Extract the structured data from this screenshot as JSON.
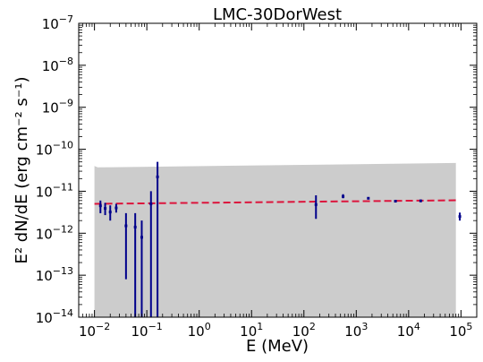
{
  "chart_data": {
    "type": "scatter",
    "title": "LMC-30DorWest",
    "xlabel": "E (MeV)",
    "ylabel": "E² dN/dE (erg cm⁻² s⁻¹)",
    "xscale": "log",
    "yscale": "log",
    "xlim": [
      0.005,
      200000
    ],
    "ylim": [
      1e-14,
      1e-07
    ],
    "x_ticks": [
      {
        "value": 0.01,
        "base": "10",
        "exp": "−2"
      },
      {
        "value": 0.1,
        "base": "10",
        "exp": "−1"
      },
      {
        "value": 1,
        "base": "10",
        "exp": "0"
      },
      {
        "value": 10,
        "base": "10",
        "exp": "1"
      },
      {
        "value": 100,
        "base": "10",
        "exp": "2"
      },
      {
        "value": 1000,
        "base": "10",
        "exp": "3"
      },
      {
        "value": 10000,
        "base": "10",
        "exp": "4"
      },
      {
        "value": 100000,
        "base": "10",
        "exp": "5"
      }
    ],
    "y_ticks": [
      {
        "value": 1e-14,
        "base": "10",
        "exp": "−14"
      },
      {
        "value": 1e-13,
        "base": "10",
        "exp": "−13"
      },
      {
        "value": 1e-12,
        "base": "10",
        "exp": "−12"
      },
      {
        "value": 1e-11,
        "base": "10",
        "exp": "−11"
      },
      {
        "value": 1e-10,
        "base": "10",
        "exp": "−10"
      },
      {
        "value": 1e-09,
        "base": "10",
        "exp": "−9"
      },
      {
        "value": 1e-08,
        "base": "10",
        "exp": "−8"
      },
      {
        "value": 1e-07,
        "base": "10",
        "exp": "−7"
      }
    ],
    "grid": false,
    "band": {
      "color": "#cccccc",
      "x": [
        0.01,
        0.0115,
        80000
      ],
      "upper": [
        4e-11,
        3.7e-11,
        4.7e-11
      ],
      "lower": [
        1e-14,
        1e-14,
        1e-14
      ]
    },
    "model_line": {
      "color": "#dc143c",
      "style": "dashed",
      "x": [
        0.01,
        80000
      ],
      "y": [
        5e-12,
        6.1e-12
      ]
    },
    "points": {
      "color": "#00008b",
      "data": [
        {
          "x": 0.013,
          "y": 4.5e-12,
          "ylo": 3e-12,
          "yhi": 6e-12
        },
        {
          "x": 0.016,
          "y": 3.9e-12,
          "ylo": 2.7e-12,
          "yhi": 5.3e-12
        },
        {
          "x": 0.02,
          "y": 3.2e-12,
          "ylo": 2e-12,
          "yhi": 4.6e-12
        },
        {
          "x": 0.026,
          "y": 4e-12,
          "ylo": 3.1e-12,
          "yhi": 5e-12
        },
        {
          "x": 0.04,
          "y": 1.5e-12,
          "ylo": 8e-14,
          "yhi": 3e-12
        },
        {
          "x": 0.06,
          "y": 1.4e-12,
          "ylo": 1e-14,
          "yhi": 3e-12
        },
        {
          "x": 0.08,
          "y": 8e-13,
          "ylo": 1e-14,
          "yhi": 2e-12
        },
        {
          "x": 0.12,
          "y": 5e-12,
          "ylo": 1e-14,
          "yhi": 1e-11
        },
        {
          "x": 0.16,
          "y": 2.2e-11,
          "ylo": 1e-14,
          "yhi": 5e-11
        },
        {
          "x": 170,
          "y": 4.8e-12,
          "ylo": 2.2e-12,
          "yhi": 8e-12
        },
        {
          "x": 560,
          "y": 7.5e-12,
          "ylo": 6.8e-12,
          "yhi": 8.5e-12
        },
        {
          "x": 1700,
          "y": 6.8e-12,
          "ylo": 6.5e-12,
          "yhi": 7.2e-12
        },
        {
          "x": 5600,
          "y": 5.8e-12,
          "ylo": 5.5e-12,
          "yhi": 6.1e-12
        },
        {
          "x": 17000,
          "y": 5.9e-12,
          "ylo": 5.5e-12,
          "yhi": 6.3e-12
        },
        {
          "x": 95000,
          "y": 2.5e-12,
          "ylo": 2e-12,
          "yhi": 3.1e-12
        }
      ]
    }
  }
}
